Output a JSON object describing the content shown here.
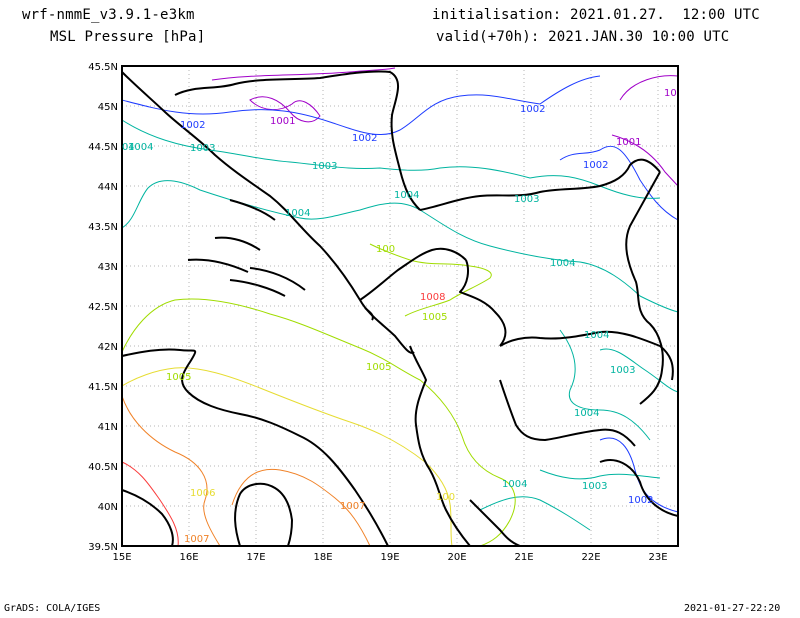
{
  "header": {
    "model": "wrf-nmmE_v3.9.1-e3km",
    "field": "MSL Pressure [hPa]",
    "init": "initialisation: 2021.01.27.  12:00 UTC",
    "valid": "valid(+70h): 2021.JAN.30 10:00 UTC"
  },
  "footer": {
    "left": "GrADS: COLA/IGES",
    "right": "2021-01-27-22:20"
  },
  "axes": {
    "x_ticks": [
      "15E",
      "16E",
      "17E",
      "18E",
      "19E",
      "20E",
      "21E",
      "22E",
      "23E"
    ],
    "y_ticks": [
      "45.5N",
      "45N",
      "44.5N",
      "44N",
      "43.5N",
      "43N",
      "42.5N",
      "42N",
      "41.5N",
      "41N",
      "40.5N",
      "40N",
      "39.5N"
    ]
  },
  "contour_labels": [
    {
      "text": "1001",
      "color": "#a000c8"
    },
    {
      "text": "10",
      "color": "#a000c8"
    },
    {
      "text": "1001",
      "color": "#a000c8"
    },
    {
      "text": "1002",
      "color": "#1e3cff"
    },
    {
      "text": "1002",
      "color": "#1e3cff"
    },
    {
      "text": "1002",
      "color": "#1e3cff"
    },
    {
      "text": "1002",
      "color": "#1e3cff"
    },
    {
      "text": "1002",
      "color": "#1e3cff"
    },
    {
      "text": "1003",
      "color": "#00b4a0"
    },
    {
      "text": "1003",
      "color": "#00b4a0"
    },
    {
      "text": "1003",
      "color": "#00b4a0"
    },
    {
      "text": "1003",
      "color": "#00b4a0"
    },
    {
      "text": "1003",
      "color": "#00b4a0"
    },
    {
      "text": "04",
      "color": "#00b4a0"
    },
    {
      "text": "1004",
      "color": "#00b4a0"
    },
    {
      "text": "1004",
      "color": "#00b4a0"
    },
    {
      "text": "1004",
      "color": "#00b4a0"
    },
    {
      "text": "1004",
      "color": "#00b4a0"
    },
    {
      "text": "1004",
      "color": "#00b4a0"
    },
    {
      "text": "1004",
      "color": "#00b4a0"
    },
    {
      "text": "1004",
      "color": "#00b4a0"
    },
    {
      "text": "100",
      "color": "#a0dc00"
    },
    {
      "text": "1005",
      "color": "#a0dc00"
    },
    {
      "text": "1005",
      "color": "#a0dc00"
    },
    {
      "text": "1005",
      "color": "#a0dc00"
    },
    {
      "text": "100",
      "color": "#e6dc32"
    },
    {
      "text": "1006",
      "color": "#e6dc32"
    },
    {
      "text": "1007",
      "color": "#f08228"
    },
    {
      "text": "1007",
      "color": "#f08228"
    },
    {
      "text": "1008",
      "color": "#fa3c3c"
    }
  ]
}
